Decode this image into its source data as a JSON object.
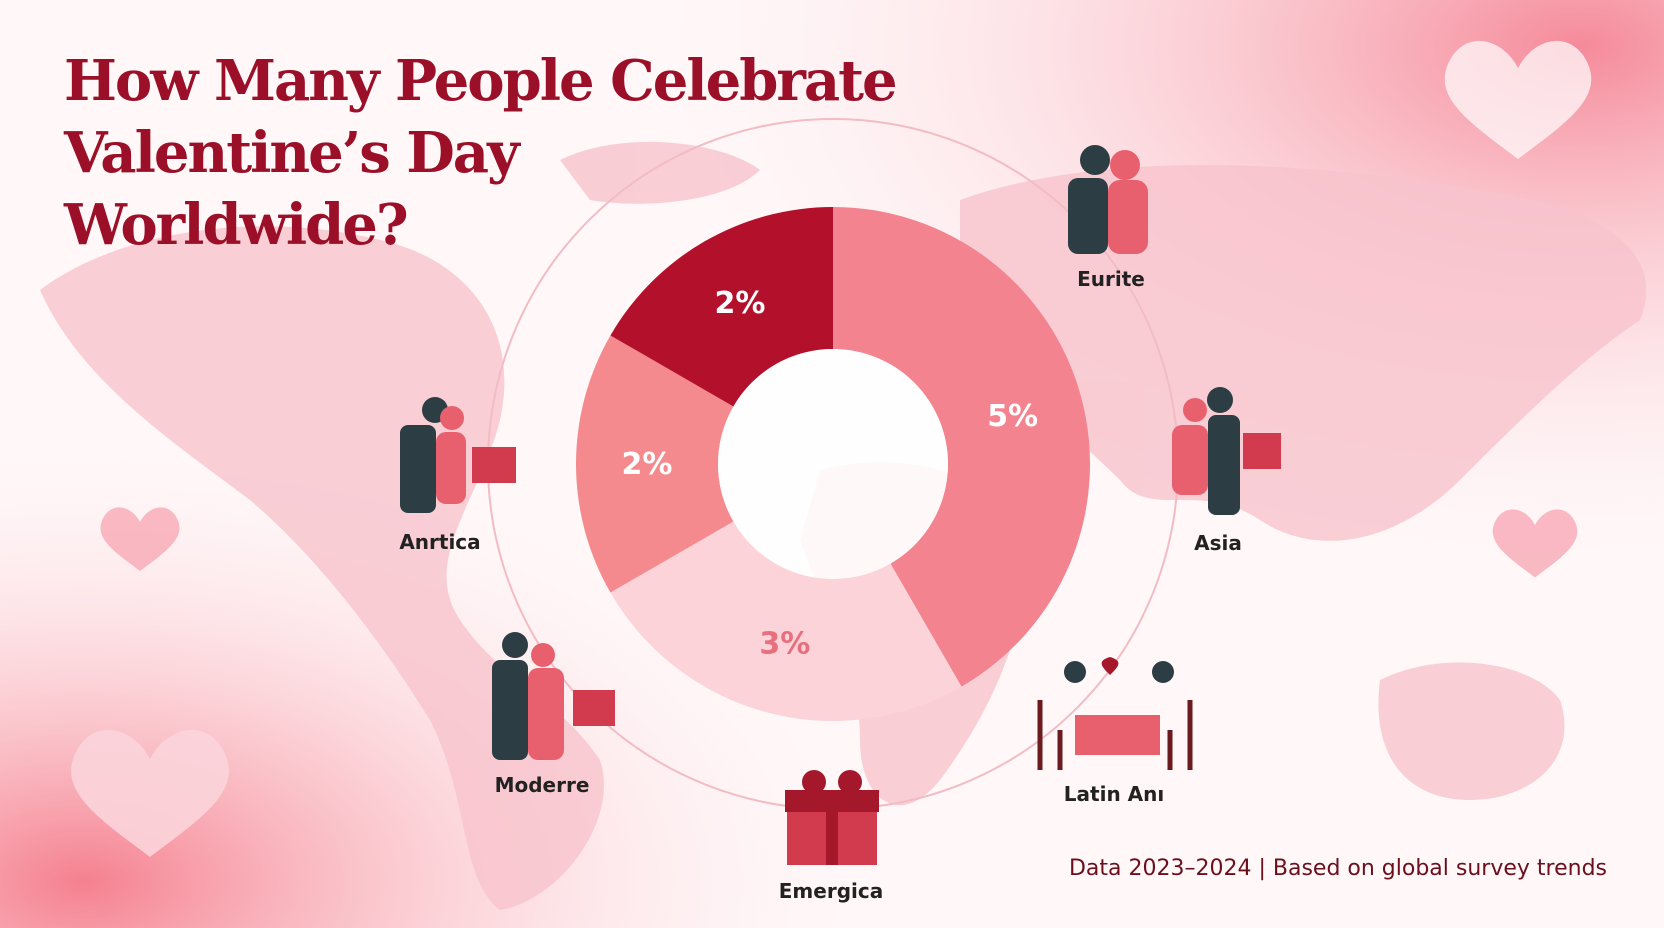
{
  "chart_data": {
    "type": "donut",
    "title": [
      "How Many People Celebrate",
      "Valentine’s Day",
      "Worldwide?"
    ],
    "values": [
      5,
      3,
      2,
      2
    ],
    "value_labels": [
      "5%",
      "3%",
      "2%",
      "2%"
    ],
    "colors": [
      "#f2838f",
      "#fcd3d8",
      "#f48a8e",
      "#b3102b"
    ],
    "label_colors": [
      "#ffffff",
      "#e8707e",
      "#ffffff",
      "#ffffff"
    ],
    "annotations": [
      "Eurite",
      "Asia",
      "Latin Anı",
      "Emergica",
      "Moderre",
      "Anrtica"
    ],
    "note": "Data 2023–2024 | Based on global survey trends"
  }
}
